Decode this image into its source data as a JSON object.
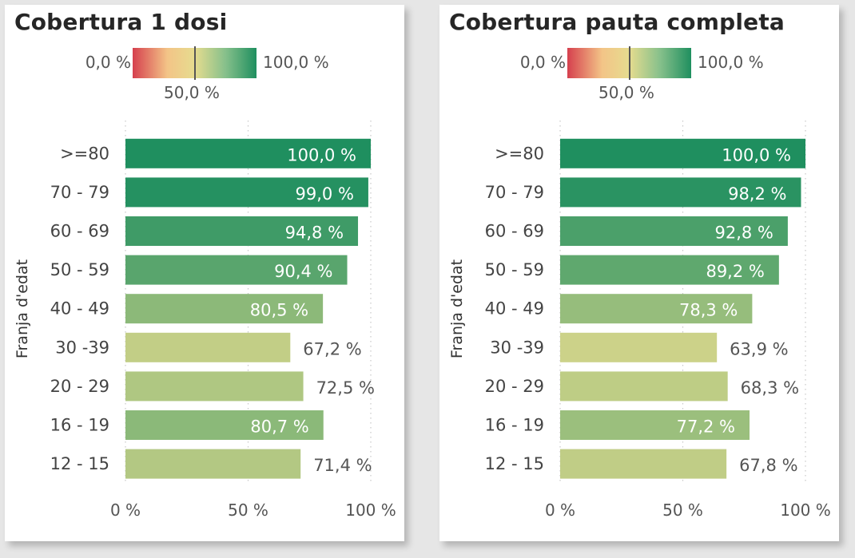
{
  "chart_data": [
    {
      "type": "bar",
      "orientation": "horizontal",
      "title": "Cobertura 1 dosi",
      "ylabel": "Franja d'edat",
      "xlabel": "",
      "categories": [
        ">=80",
        "70 - 79",
        "60 - 69",
        "50 - 59",
        "40 - 49",
        "30 -39",
        "20 - 29",
        "16 - 19",
        "12 - 15"
      ],
      "values": [
        100.0,
        99.0,
        94.8,
        90.4,
        80.5,
        67.2,
        72.5,
        80.7,
        71.4
      ],
      "value_labels": [
        "100,0 %",
        "99,0 %",
        "94,8 %",
        "90,4 %",
        "80,5 %",
        "67,2 %",
        "72,5 %",
        "80,7 %",
        "71,4 %"
      ],
      "xlim": [
        0,
        100
      ],
      "x_ticks": [
        0,
        50,
        100
      ],
      "x_tick_labels": [
        "0 %",
        "50 %",
        "100 %"
      ],
      "grid": true,
      "color_scale": {
        "min": 0,
        "mid": 50,
        "max": 100,
        "min_label": "0,0 %",
        "mid_label": "50,0 %",
        "max_label": "100,0 %",
        "min_color": "#d6404e",
        "mid_color": "#e6dc8f",
        "max_color": "#1f8f5f"
      }
    },
    {
      "type": "bar",
      "orientation": "horizontal",
      "title": "Cobertura pauta completa",
      "ylabel": "Franja d'edat",
      "xlabel": "",
      "categories": [
        ">=80",
        "70 - 79",
        "60 - 69",
        "50 - 59",
        "40 - 49",
        "30 -39",
        "20 - 29",
        "16 - 19",
        "12 - 15"
      ],
      "values": [
        100.0,
        98.2,
        92.8,
        89.2,
        78.3,
        63.9,
        68.3,
        77.2,
        67.8
      ],
      "value_labels": [
        "100,0 %",
        "98,2 %",
        "92,8 %",
        "89,2 %",
        "78,3 %",
        "63,9 %",
        "68,3 %",
        "77,2 %",
        "67,8 %"
      ],
      "xlim": [
        0,
        100
      ],
      "x_ticks": [
        0,
        50,
        100
      ],
      "x_tick_labels": [
        "0 %",
        "50 %",
        "100 %"
      ],
      "grid": true,
      "color_scale": {
        "min": 0,
        "mid": 50,
        "max": 100,
        "min_label": "0,0 %",
        "mid_label": "50,0 %",
        "max_label": "100,0 %",
        "min_color": "#d6404e",
        "mid_color": "#e6dc8f",
        "max_color": "#1f8f5f"
      }
    }
  ]
}
